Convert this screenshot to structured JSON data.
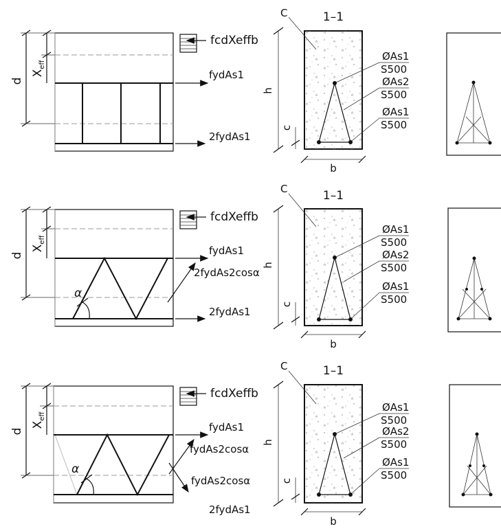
{
  "labels": {
    "d": "d",
    "x_eff_main": "X",
    "x_eff_sub": "eff",
    "h": "h",
    "c": "c",
    "b": "b",
    "concrete": "C",
    "section": "1–1",
    "alpha": "α"
  },
  "panel1": {
    "force_top": "fcdXeffb",
    "force_mid": "fydAs1",
    "force_bot": "2fydAs1"
  },
  "panel2": {
    "force_top": "fcdXeffb",
    "force_mid": "fydAs1",
    "force_diag": "2fydAs2cosα",
    "force_bot": "2fydAs1"
  },
  "panel3": {
    "force_top": "fcdXeffb",
    "force_mid": "fydAs1",
    "force_diag_up": "fydAs2cosα",
    "force_diag_down": "fydAs2cosα",
    "force_bot": "2fydAs1"
  },
  "rebar": {
    "as1": "ØAs1",
    "as2": "ØAs2",
    "grade": "S500"
  }
}
